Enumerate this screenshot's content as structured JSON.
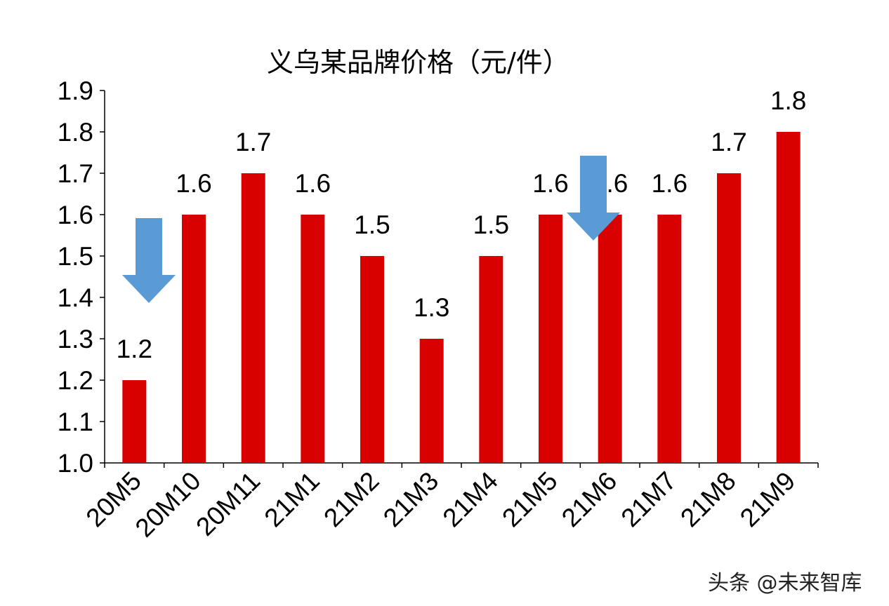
{
  "chart_data": {
    "type": "bar",
    "title": "义乌某品牌价格（元/件）",
    "categories": [
      "20M5",
      "20M10",
      "20M11",
      "21M1",
      "21M2",
      "21M3",
      "21M4",
      "21M5",
      "21M6",
      "21M7",
      "21M8",
      "21M9"
    ],
    "values": [
      1.2,
      1.6,
      1.7,
      1.6,
      1.5,
      1.3,
      1.5,
      1.6,
      1.6,
      1.6,
      1.7,
      1.8
    ],
    "data_labels": [
      "1.2",
      "1.6",
      "1.7",
      "1.6",
      "1.5",
      "1.3",
      "1.5",
      "1.6",
      "1.6",
      "1.6",
      "1.7",
      "1.8"
    ],
    "ylim": [
      1.0,
      1.9
    ],
    "yticks": [
      "1.0",
      "1.1",
      "1.2",
      "1.3",
      "1.4",
      "1.5",
      "1.6",
      "1.7",
      "1.8",
      "1.9"
    ],
    "xlabel": "",
    "ylabel": "",
    "grid": false,
    "bar_color": "#D90000",
    "annotations": [
      {
        "type": "down-arrow",
        "category": "20M5",
        "color": "#5B9BD5"
      },
      {
        "type": "down-arrow",
        "category": "21M6",
        "color": "#5B9BD5"
      }
    ]
  },
  "watermark": "头条 @未来智库"
}
